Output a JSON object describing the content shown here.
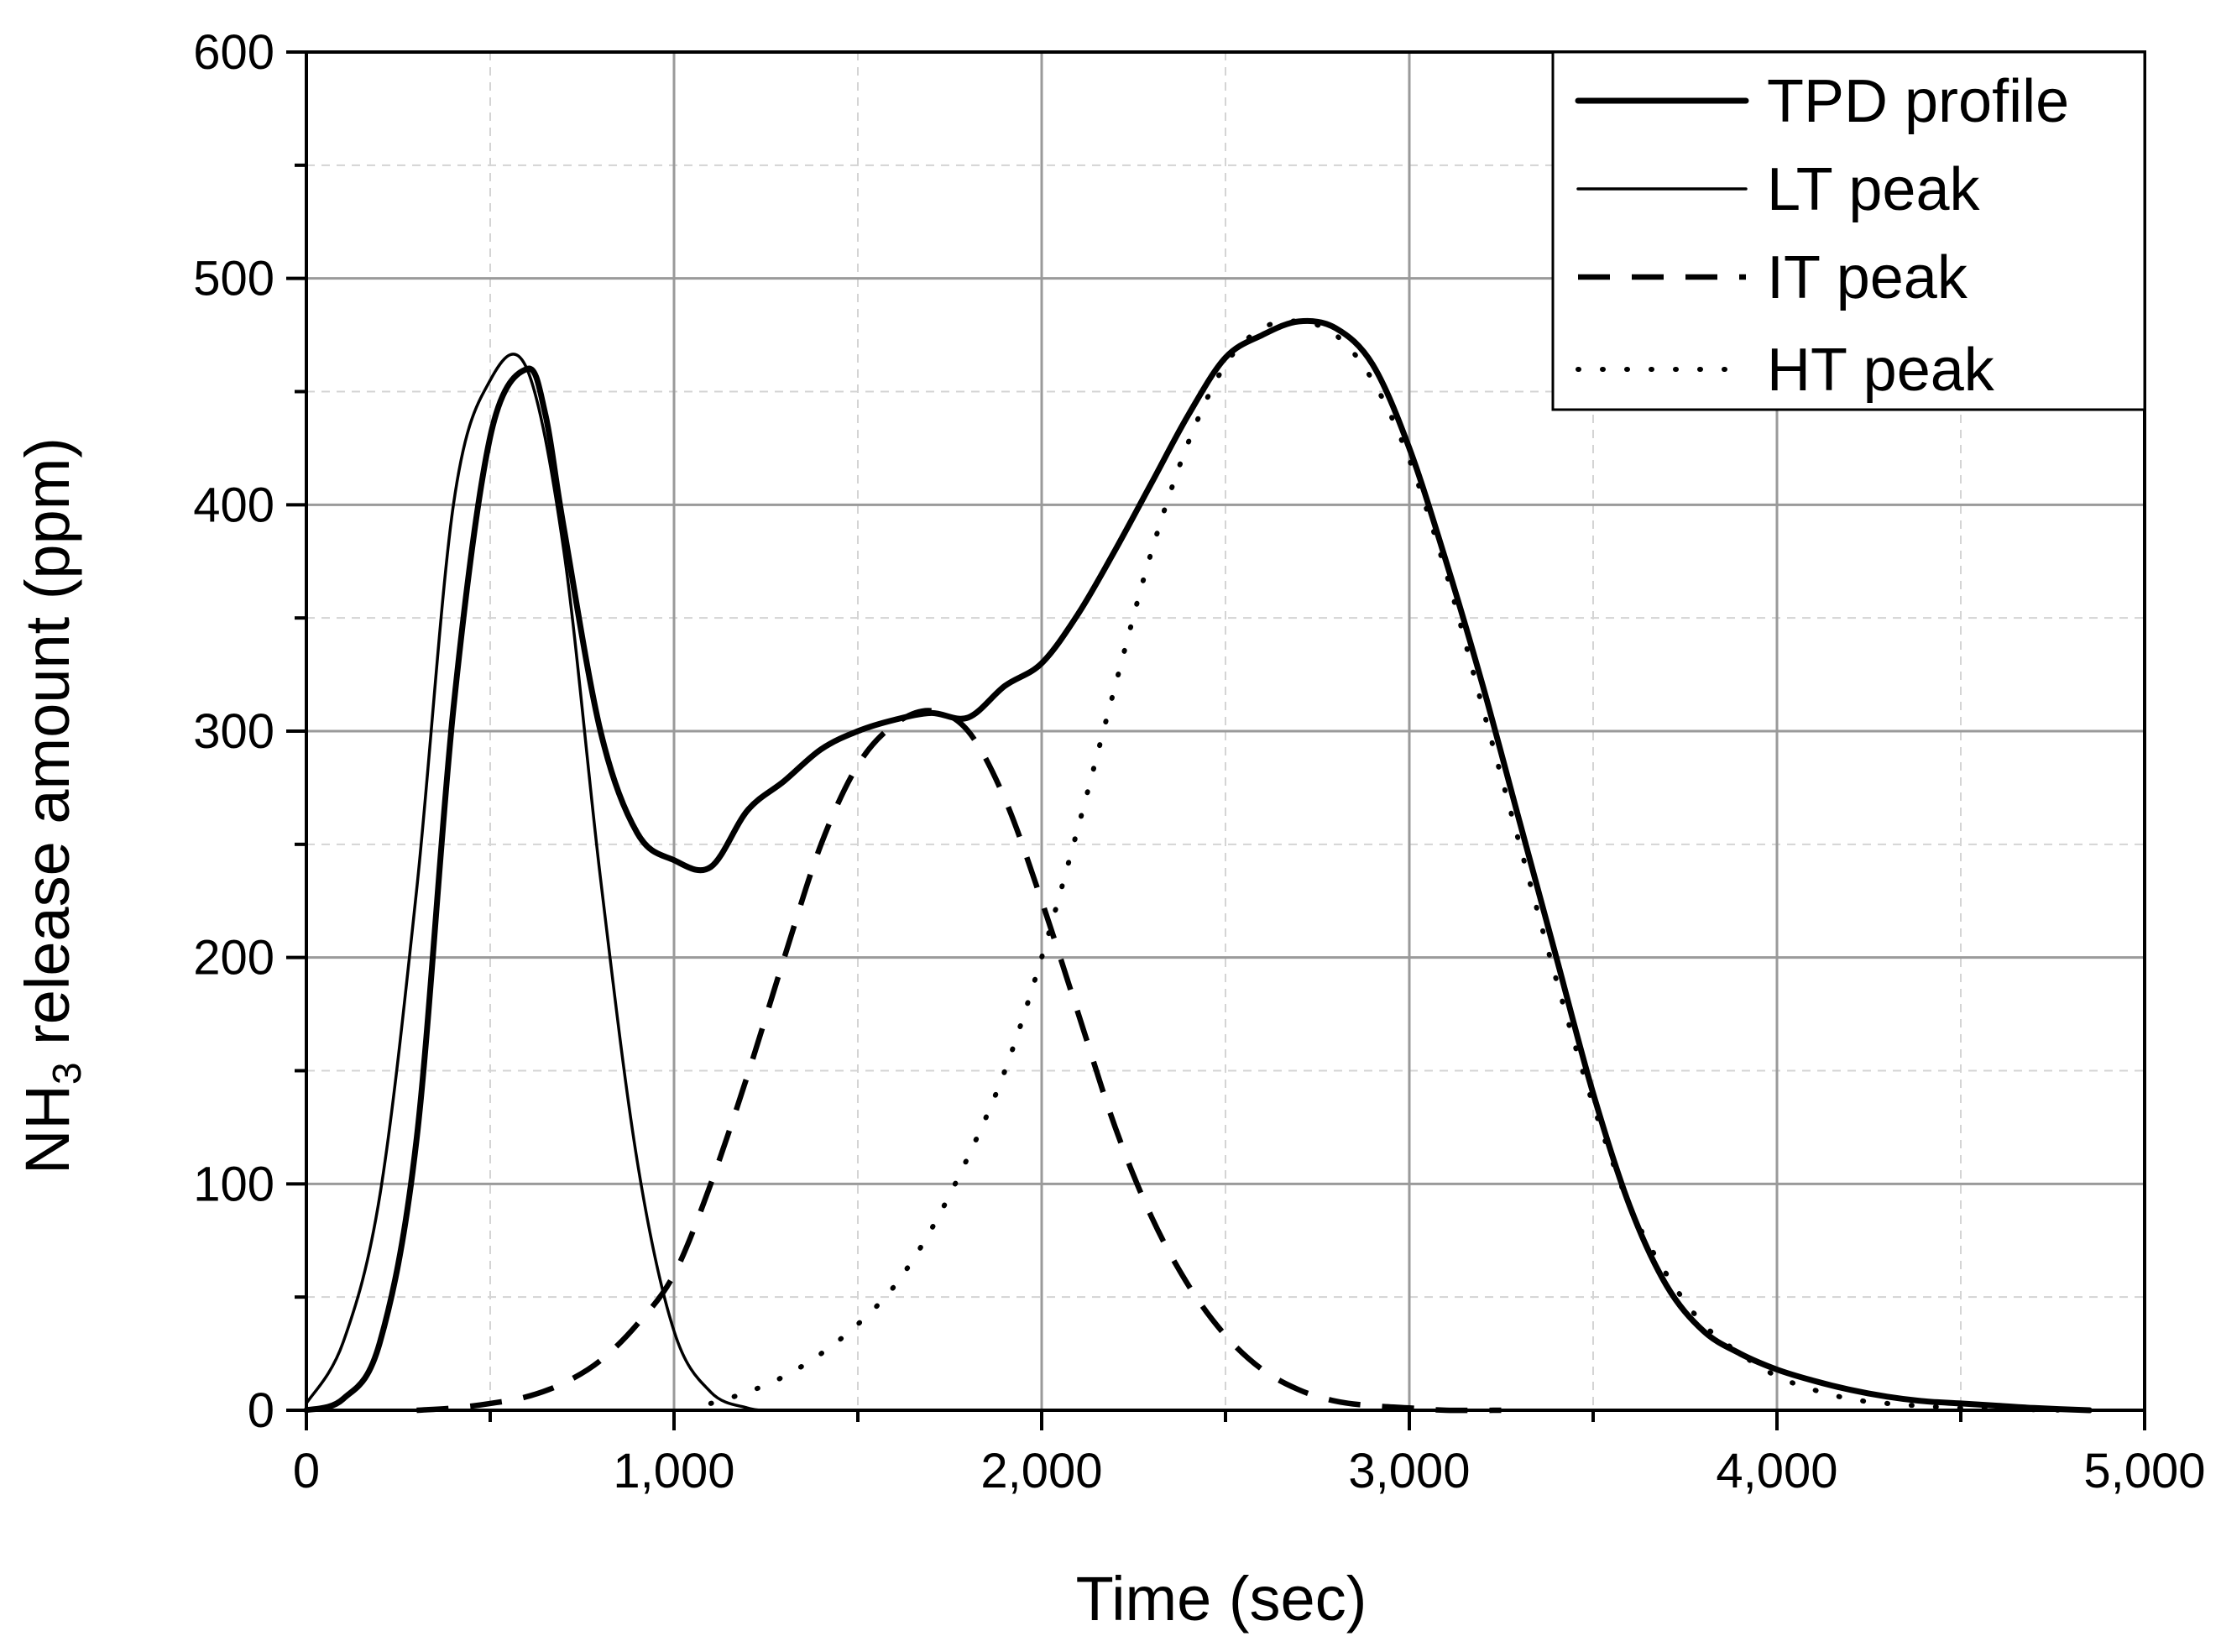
{
  "chart_data": {
    "type": "line",
    "title": "",
    "xlabel": "Time (sec)",
    "ylabel": {
      "prefix": "NH",
      "subscript": "3",
      "suffix": " release amount (ppm)"
    },
    "xlim": [
      0,
      5000
    ],
    "ylim": [
      0,
      600
    ],
    "grid": true,
    "legend_position": "top-right",
    "x_ticks": [
      0,
      1000,
      2000,
      3000,
      4000,
      5000
    ],
    "x_tick_labels": [
      "0",
      "1,000",
      "2,000",
      "3,000",
      "4,000",
      "5,000"
    ],
    "y_ticks": [
      0,
      100,
      200,
      300,
      400,
      500,
      600
    ],
    "y_tick_labels": [
      "0",
      "100",
      "200",
      "300",
      "400",
      "500",
      "600"
    ],
    "series": [
      {
        "name": "TPD profile",
        "style": "solid-thick",
        "x": [
          0,
          100,
          200,
          300,
          400,
          500,
          600,
          650,
          700,
          800,
          900,
          1000,
          1100,
          1200,
          1300,
          1400,
          1500,
          1600,
          1700,
          1800,
          1900,
          2000,
          2100,
          2200,
          2300,
          2400,
          2500,
          2600,
          2700,
          2800,
          2900,
          3000,
          3100,
          3200,
          3300,
          3400,
          3500,
          3600,
          3700,
          3800,
          3900,
          4000,
          4100,
          4200,
          4300,
          4400,
          4500,
          4600,
          4700,
          4850
        ],
        "y": [
          0,
          5,
          30,
          120,
          310,
          430,
          460,
          440,
          390,
          300,
          255,
          243,
          240,
          265,
          278,
          292,
          300,
          305,
          308,
          306,
          320,
          330,
          352,
          380,
          410,
          440,
          465,
          475,
          481,
          478,
          462,
          425,
          375,
          320,
          260,
          200,
          140,
          90,
          55,
          35,
          25,
          18,
          13,
          9,
          6,
          4,
          3,
          2,
          1,
          0
        ]
      },
      {
        "name": "LT peak",
        "style": "solid-thin",
        "x": [
          0,
          100,
          200,
          300,
          400,
          500,
          600,
          700,
          800,
          900,
          1000,
          1100,
          1200,
          1250
        ],
        "y": [
          3,
          30,
          95,
          230,
          400,
          455,
          460,
          380,
          235,
          110,
          35,
          8,
          1,
          0
        ]
      },
      {
        "name": "IT peak",
        "style": "dashed",
        "x": [
          300,
          400,
          500,
          600,
          700,
          800,
          900,
          1000,
          1100,
          1200,
          1300,
          1400,
          1500,
          1600,
          1700,
          1800,
          1900,
          2000,
          2100,
          2200,
          2300,
          2400,
          2500,
          2600,
          2700,
          2800,
          2900,
          3000,
          3100,
          3250
        ],
        "y": [
          0,
          1,
          3,
          6,
          12,
          22,
          38,
          60,
          100,
          148,
          200,
          250,
          285,
          303,
          309,
          300,
          270,
          225,
          175,
          125,
          85,
          55,
          33,
          18,
          9,
          4,
          2,
          1,
          0,
          0
        ]
      },
      {
        "name": "HT peak",
        "style": "dotted",
        "x": [
          1100,
          1200,
          1300,
          1400,
          1500,
          1600,
          1700,
          1800,
          1900,
          2000,
          2100,
          2200,
          2300,
          2400,
          2500,
          2600,
          2700,
          2800,
          2900,
          3000,
          3100,
          3200,
          3300,
          3400,
          3500,
          3600,
          3700,
          3800,
          3900,
          4000,
          4100,
          4200,
          4300,
          4500,
          4800
        ],
        "y": [
          3,
          8,
          15,
          25,
          38,
          55,
          80,
          112,
          150,
          200,
          258,
          320,
          380,
          428,
          462,
          478,
          481,
          475,
          455,
          420,
          370,
          310,
          250,
          190,
          135,
          90,
          60,
          38,
          25,
          15,
          9,
          5,
          3,
          1,
          0
        ]
      }
    ]
  }
}
